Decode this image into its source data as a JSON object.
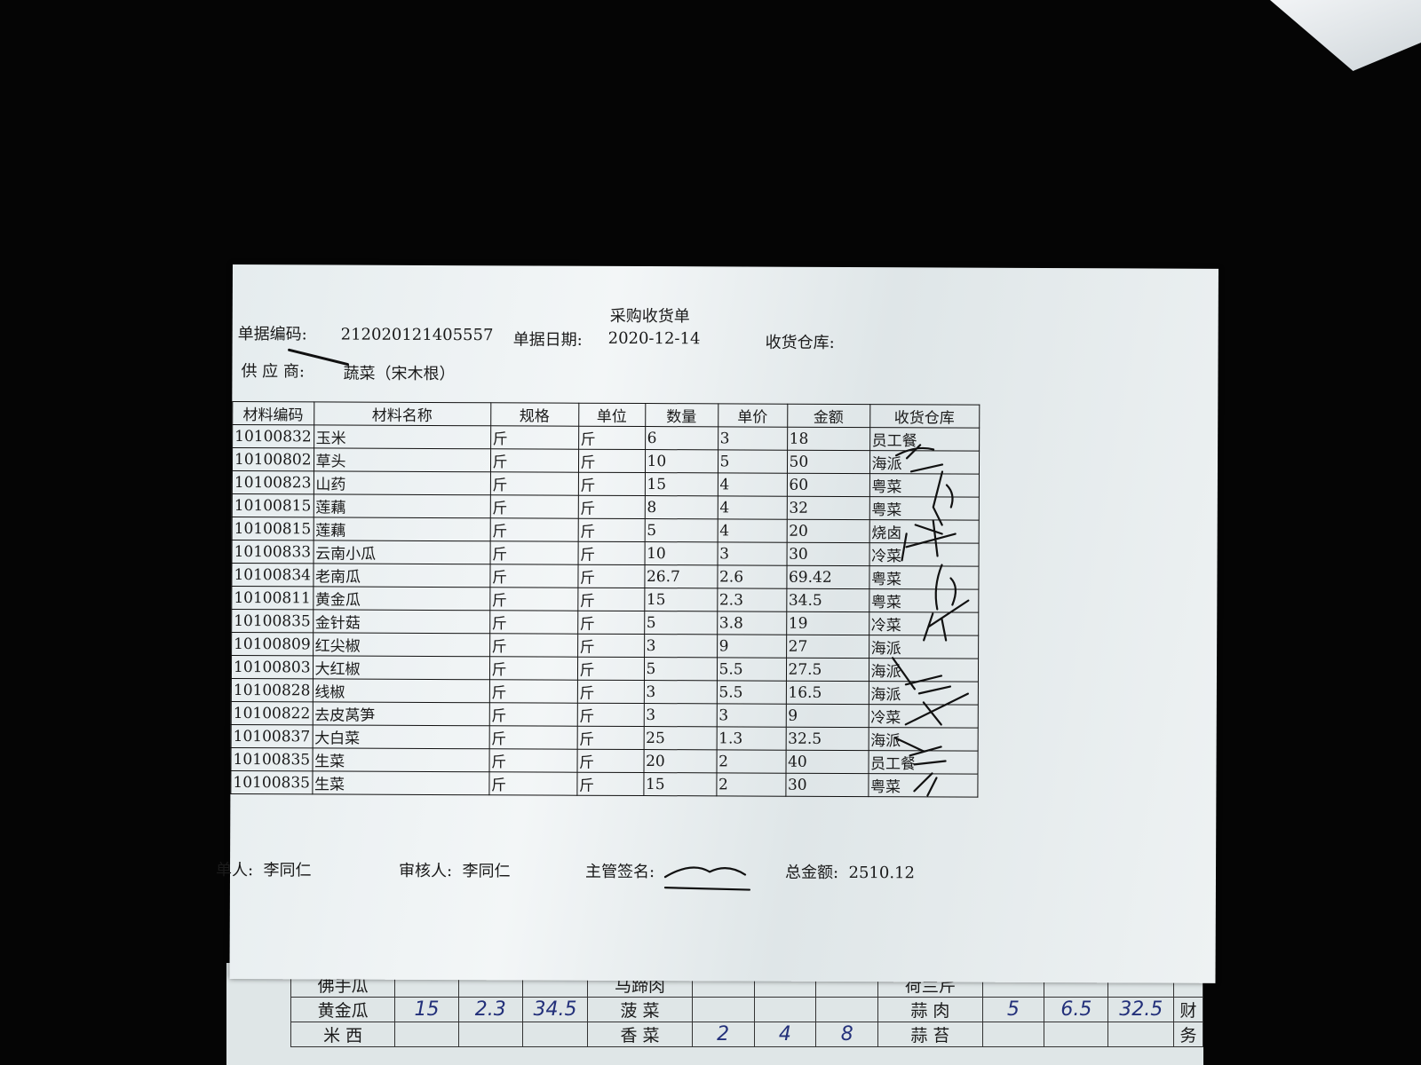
{
  "document": {
    "title": "采购收货单",
    "doc_no_label": "单据编码:",
    "doc_no": "212020121405557",
    "date_label": "单据日期:",
    "date": "2020-12-14",
    "warehouse_label": "收货仓库:",
    "supplier_label": "供 应 商:",
    "supplier": "蔬菜（宋木根）"
  },
  "table": {
    "headers": [
      "材料编码",
      "材料名称",
      "规格",
      "单位",
      "数量",
      "单价",
      "金额",
      "收货仓库"
    ],
    "rows": [
      [
        "10100832",
        "玉米",
        "斤",
        "斤",
        "6",
        "3",
        "18",
        "员工餐"
      ],
      [
        "10100802",
        "草头",
        "斤",
        "斤",
        "10",
        "5",
        "50",
        "海派"
      ],
      [
        "10100823",
        "山药",
        "斤",
        "斤",
        "15",
        "4",
        "60",
        "粤菜"
      ],
      [
        "10100815",
        "莲藕",
        "斤",
        "斤",
        "8",
        "4",
        "32",
        "粤菜"
      ],
      [
        "10100815",
        "莲藕",
        "斤",
        "斤",
        "5",
        "4",
        "20",
        "烧卤"
      ],
      [
        "10100833",
        "云南小瓜",
        "斤",
        "斤",
        "10",
        "3",
        "30",
        "冷菜"
      ],
      [
        "10100834",
        "老南瓜",
        "斤",
        "斤",
        "26.7",
        "2.6",
        "69.42",
        "粤菜"
      ],
      [
        "10100811",
        "黄金瓜",
        "斤",
        "斤",
        "15",
        "2.3",
        "34.5",
        "粤菜"
      ],
      [
        "10100835",
        "金针菇",
        "斤",
        "斤",
        "5",
        "3.8",
        "19",
        "冷菜"
      ],
      [
        "10100809",
        "红尖椒",
        "斤",
        "斤",
        "3",
        "9",
        "27",
        "海派"
      ],
      [
        "10100803",
        "大红椒",
        "斤",
        "斤",
        "5",
        "5.5",
        "27.5",
        "海派"
      ],
      [
        "10100828",
        "线椒",
        "斤",
        "斤",
        "3",
        "5.5",
        "16.5",
        "海派"
      ],
      [
        "10100822",
        "去皮莴笋",
        "斤",
        "斤",
        "3",
        "3",
        "9",
        "冷菜"
      ],
      [
        "10100837",
        "大白菜",
        "斤",
        "斤",
        "25",
        "1.3",
        "32.5",
        "海派"
      ],
      [
        "10100835",
        "生菜",
        "斤",
        "斤",
        "20",
        "2",
        "40",
        "员工餐"
      ],
      [
        "10100835",
        "生菜",
        "斤",
        "斤",
        "15",
        "2",
        "30",
        "粤菜"
      ]
    ]
  },
  "footer": {
    "maker_label": "单人:",
    "maker": "李同仁",
    "reviewer_label": "审核人:",
    "reviewer": "李同仁",
    "supervisor_label": "主管签名:",
    "total_label": "总金额:",
    "total": "2510.12"
  },
  "lower_sheet": {
    "rows": [
      [
        "佛手瓜",
        "",
        "",
        "",
        "马蹄肉",
        "",
        "",
        "",
        "荷兰芹",
        "",
        "",
        "",
        ""
      ],
      [
        "黄金瓜",
        "15",
        "2.3",
        "34.5",
        "菠 菜",
        "",
        "",
        "",
        "蒜 肉",
        "5",
        "6.5",
        "32.5",
        "财"
      ],
      [
        "米 西",
        "",
        "",
        "",
        "香 菜",
        "2",
        "4",
        "8",
        "蒜 苔",
        "",
        "",
        "",
        "务"
      ]
    ]
  }
}
